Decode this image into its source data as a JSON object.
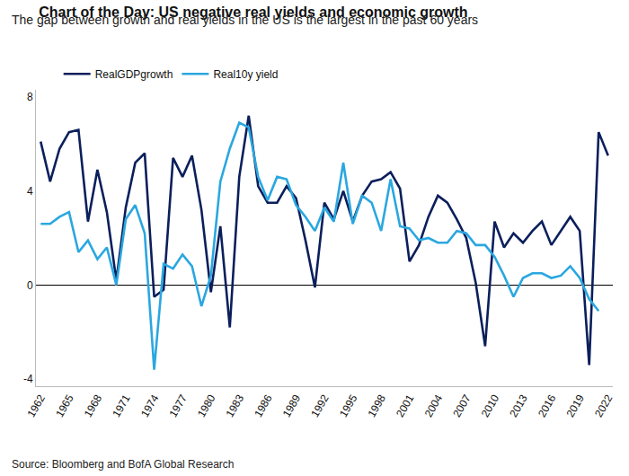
{
  "chart_data": {
    "type": "line",
    "title": "Chart of the Day: US negative real yields and economic growth",
    "subtitle": "The gap between growth and real yields in the US is the largest in the past 60 years",
    "annotations": [
      {
        "text": "Source: Bloomberg and BofA Global Research"
      }
    ],
    "x": [
      1962,
      1963,
      1964,
      1965,
      1966,
      1967,
      1968,
      1969,
      1970,
      1971,
      1972,
      1973,
      1974,
      1975,
      1976,
      1977,
      1978,
      1979,
      1980,
      1981,
      1982,
      1983,
      1984,
      1985,
      1986,
      1987,
      1988,
      1989,
      1990,
      1991,
      1992,
      1993,
      1994,
      1995,
      1996,
      1997,
      1998,
      1999,
      2000,
      2001,
      2002,
      2003,
      2004,
      2005,
      2006,
      2007,
      2008,
      2009,
      2010,
      2011,
      2012,
      2013,
      2014,
      2015,
      2016,
      2017,
      2018,
      2019,
      2020,
      2021,
      2022
    ],
    "series": [
      {
        "name": "RealGDPgrowth",
        "color": "#0b1f5c",
        "values": [
          6.1,
          4.4,
          5.8,
          6.5,
          6.6,
          2.7,
          4.9,
          3.1,
          0.2,
          3.3,
          5.2,
          5.6,
          -0.5,
          -0.2,
          5.4,
          4.6,
          5.5,
          3.2,
          -0.3,
          2.5,
          -1.8,
          4.6,
          7.2,
          4.2,
          3.5,
          3.5,
          4.2,
          3.7,
          1.9,
          -0.1,
          3.5,
          2.8,
          4.0,
          2.7,
          3.8,
          4.4,
          4.5,
          4.8,
          4.1,
          1.0,
          1.7,
          2.9,
          3.8,
          3.5,
          2.8,
          2.0,
          0.1,
          -2.6,
          2.7,
          1.6,
          2.2,
          1.8,
          2.3,
          2.7,
          1.7,
          2.3,
          2.9,
          2.3,
          -3.4,
          6.5,
          5.5
        ]
      },
      {
        "name": "Real10y yield",
        "color": "#2aa7e0",
        "values": [
          2.6,
          2.6,
          2.9,
          3.1,
          1.4,
          1.9,
          1.1,
          1.6,
          0.0,
          2.8,
          3.4,
          2.2,
          -3.6,
          0.9,
          0.7,
          1.3,
          0.8,
          -0.9,
          0.4,
          4.4,
          5.8,
          6.9,
          6.7,
          4.6,
          3.6,
          4.6,
          4.5,
          3.4,
          2.9,
          2.3,
          3.3,
          2.7,
          5.2,
          2.6,
          3.8,
          3.5,
          2.3,
          4.5,
          2.5,
          2.4,
          1.9,
          2.0,
          1.8,
          1.8,
          2.3,
          2.2,
          1.7,
          1.7,
          1.2,
          0.4,
          -0.5,
          0.3,
          0.5,
          0.5,
          0.3,
          0.4,
          0.8,
          0.3,
          -0.6,
          -1.1,
          null
        ]
      }
    ],
    "xlim": [
      1961.5,
      2022.5
    ],
    "xticks": [
      1962,
      1965,
      1968,
      1971,
      1974,
      1977,
      1980,
      1983,
      1986,
      1989,
      1992,
      1995,
      1998,
      2001,
      2004,
      2007,
      2010,
      2013,
      2016,
      2019,
      2022
    ],
    "ylim": [
      -4.3,
      8.3
    ],
    "yticks": [
      -4,
      0,
      4,
      8
    ],
    "grid": false,
    "legend": "top left"
  }
}
